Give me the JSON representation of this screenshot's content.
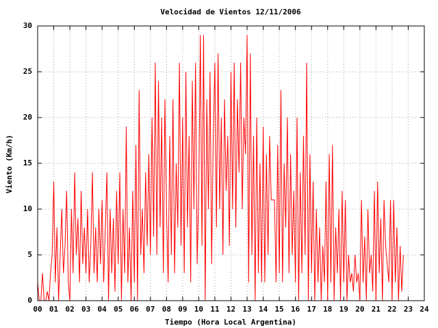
{
  "chart_data": {
    "type": "line",
    "title": "Velocidad de Vientos 12/11/2006",
    "x_label": "Tiempo (Hora Local Argentina)",
    "y_label": "Viento (Km/h)",
    "xlim": [
      0,
      24
    ],
    "ylim": [
      0,
      30
    ],
    "xticks": [
      {
        "value": 0,
        "label": "00"
      },
      {
        "value": 1,
        "label": "01"
      },
      {
        "value": 2,
        "label": "02"
      },
      {
        "value": 3,
        "label": "03"
      },
      {
        "value": 4,
        "label": "04"
      },
      {
        "value": 5,
        "label": "05"
      },
      {
        "value": 6,
        "label": "06"
      },
      {
        "value": 7,
        "label": "07"
      },
      {
        "value": 8,
        "label": "08"
      },
      {
        "value": 9,
        "label": "09"
      },
      10,
      11,
      12,
      13,
      14,
      15,
      16,
      17,
      18,
      19,
      20,
      21,
      22,
      23,
      24
    ],
    "yticks": [
      0,
      5,
      10,
      15,
      20,
      25,
      30
    ],
    "grid": true,
    "x": [
      0,
      0.1,
      0.2,
      0.3,
      0.4,
      0.5,
      0.6,
      0.7,
      0.8,
      0.9,
      1,
      1.1,
      1.2,
      1.3,
      1.4,
      1.5,
      1.6,
      1.7,
      1.8,
      1.9,
      2,
      2.1,
      2.2,
      2.3,
      2.4,
      2.5,
      2.6,
      2.7,
      2.8,
      2.9,
      3,
      3.1,
      3.2,
      3.3,
      3.4,
      3.5,
      3.6,
      3.7,
      3.8,
      3.9,
      4,
      4.1,
      4.2,
      4.3,
      4.4,
      4.5,
      4.6,
      4.7,
      4.8,
      4.9,
      5,
      5.1,
      5.2,
      5.3,
      5.4,
      5.5,
      5.6,
      5.7,
      5.8,
      5.9,
      6,
      6.1,
      6.2,
      6.3,
      6.4,
      6.5,
      6.6,
      6.7,
      6.8,
      6.9,
      7,
      7.1,
      7.2,
      7.3,
      7.4,
      7.5,
      7.6,
      7.7,
      7.8,
      7.9,
      8,
      8.1,
      8.2,
      8.3,
      8.4,
      8.5,
      8.6,
      8.7,
      8.8,
      8.9,
      9,
      9.1,
      9.2,
      9.3,
      9.4,
      9.5,
      9.6,
      9.7,
      9.8,
      9.9,
      10,
      10.1,
      10.2,
      10.3,
      10.4,
      10.5,
      10.6,
      10.7,
      10.8,
      10.9,
      11,
      11.1,
      11.2,
      11.3,
      11.4,
      11.5,
      11.6,
      11.7,
      11.8,
      11.9,
      12,
      12.1,
      12.2,
      12.3,
      12.4,
      12.5,
      12.6,
      12.7,
      12.8,
      12.9,
      13,
      13.1,
      13.2,
      13.3,
      13.4,
      13.5,
      13.6,
      13.7,
      13.8,
      13.9,
      14,
      14.1,
      14.2,
      14.3,
      14.4,
      14.5,
      14.6,
      14.7,
      14.8,
      14.9,
      15,
      15.1,
      15.2,
      15.3,
      15.4,
      15.5,
      15.6,
      15.7,
      15.8,
      15.9,
      16,
      16.1,
      16.2,
      16.3,
      16.4,
      16.5,
      16.6,
      16.7,
      16.8,
      16.9,
      17,
      17.1,
      17.2,
      17.3,
      17.4,
      17.5,
      17.6,
      17.7,
      17.8,
      17.9,
      18,
      18.1,
      18.2,
      18.3,
      18.4,
      18.5,
      18.6,
      18.7,
      18.8,
      18.9,
      19,
      19.1,
      19.2,
      19.3,
      19.4,
      19.5,
      19.6,
      19.7,
      19.8,
      19.9,
      20,
      20.1,
      20.2,
      20.3,
      20.4,
      20.5,
      20.6,
      20.7,
      20.8,
      20.9,
      21,
      21.1,
      21.2,
      21.3,
      21.4,
      21.5,
      21.6,
      21.7,
      21.8,
      21.9,
      22,
      22.1,
      22.2,
      22.3,
      22.4,
      22.5,
      22.6,
      22.7
    ],
    "series": [
      {
        "color": "#ff0000",
        "values": [
          2,
          0,
          0,
          3,
          0,
          0,
          1,
          0,
          3,
          5,
          13,
          2,
          8,
          0,
          5,
          10,
          3,
          6,
          12,
          2,
          0,
          10,
          3,
          14,
          5,
          9,
          2,
          12,
          4,
          8,
          3,
          10,
          2,
          6,
          14,
          3,
          8,
          2,
          10,
          4,
          11,
          2,
          8,
          14,
          0,
          10,
          3,
          9,
          1,
          12,
          4,
          14,
          0,
          10,
          3,
          19,
          2,
          8,
          0,
          12,
          2,
          17,
          0,
          23,
          5,
          10,
          3,
          14,
          6,
          16,
          5,
          20,
          7,
          26,
          5,
          24,
          8,
          20,
          3,
          22,
          10,
          2,
          18,
          5,
          22,
          3,
          15,
          8,
          26,
          6,
          20,
          3,
          25,
          8,
          18,
          2,
          24,
          10,
          26,
          4,
          12,
          29,
          6,
          29,
          0,
          22,
          10,
          25,
          4,
          18,
          26,
          8,
          27,
          10,
          20,
          5,
          22,
          12,
          18,
          6,
          25,
          10,
          26,
          8,
          22,
          14,
          26,
          10,
          20,
          16,
          29,
          2,
          27,
          5,
          18,
          0,
          20,
          3,
          15,
          2,
          19,
          2,
          16,
          5,
          18,
          11,
          11,
          11,
          2,
          17,
          3,
          23,
          2,
          15,
          8,
          20,
          3,
          16,
          5,
          12,
          2,
          20,
          0,
          14,
          3,
          18,
          5,
          26,
          0,
          16,
          3,
          13,
          0,
          10,
          2,
          8,
          0,
          6,
          2,
          13,
          0,
          16,
          2,
          17,
          0,
          8,
          3,
          10,
          0,
          12,
          2,
          11,
          0,
          5,
          2,
          3,
          1,
          5,
          2,
          3,
          0,
          11,
          2,
          7,
          0,
          10,
          3,
          5,
          1,
          12,
          0,
          13,
          3,
          9,
          0,
          11,
          6,
          4,
          2,
          11,
          0,
          11,
          2,
          8,
          0,
          6,
          1,
          5
        ]
      }
    ]
  }
}
